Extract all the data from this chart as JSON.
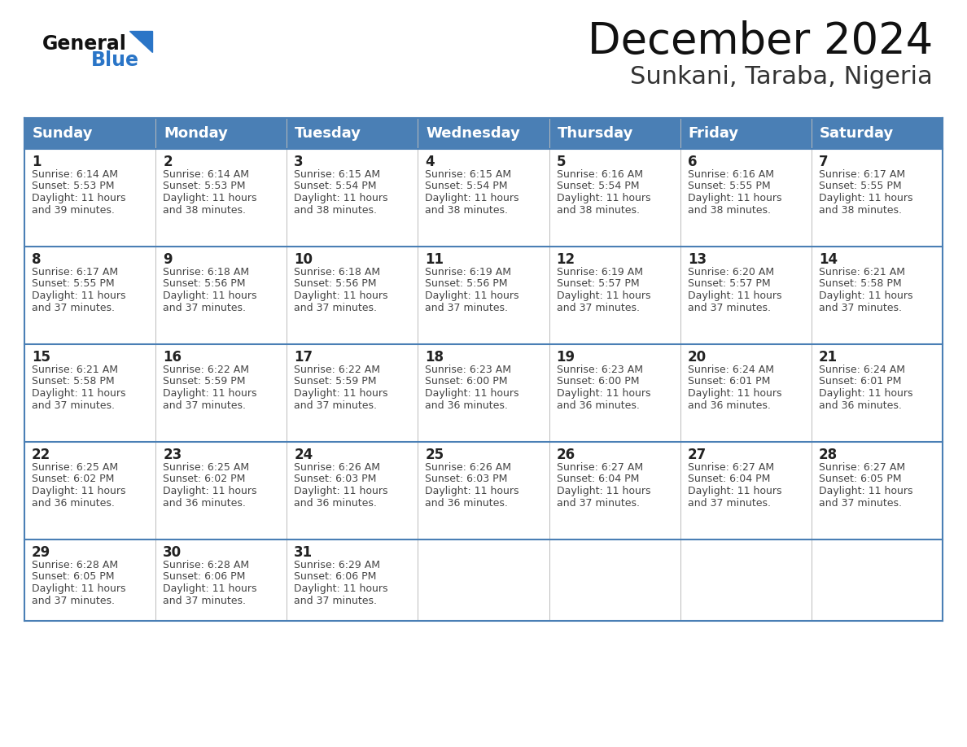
{
  "title": "December 2024",
  "subtitle": "Sunkani, Taraba, Nigeria",
  "days_of_week": [
    "Sunday",
    "Monday",
    "Tuesday",
    "Wednesday",
    "Thursday",
    "Friday",
    "Saturday"
  ],
  "header_bg": "#4a7fb5",
  "header_text": "#ffffff",
  "cell_bg": "#ffffff",
  "cell_border": "#4a7fb5",
  "row_border": "#4a7fb5",
  "day_num_color": "#222222",
  "text_color": "#444444",
  "title_color": "#111111",
  "subtitle_color": "#333333",
  "logo_general_color": "#111111",
  "logo_blue_color": "#2a75c7",
  "calendar_data": [
    [
      {
        "day": 1,
        "sunrise": "6:14 AM",
        "sunset": "5:53 PM",
        "daylight_hrs": 11,
        "daylight_min": 39
      },
      {
        "day": 2,
        "sunrise": "6:14 AM",
        "sunset": "5:53 PM",
        "daylight_hrs": 11,
        "daylight_min": 38
      },
      {
        "day": 3,
        "sunrise": "6:15 AM",
        "sunset": "5:54 PM",
        "daylight_hrs": 11,
        "daylight_min": 38
      },
      {
        "day": 4,
        "sunrise": "6:15 AM",
        "sunset": "5:54 PM",
        "daylight_hrs": 11,
        "daylight_min": 38
      },
      {
        "day": 5,
        "sunrise": "6:16 AM",
        "sunset": "5:54 PM",
        "daylight_hrs": 11,
        "daylight_min": 38
      },
      {
        "day": 6,
        "sunrise": "6:16 AM",
        "sunset": "5:55 PM",
        "daylight_hrs": 11,
        "daylight_min": 38
      },
      {
        "day": 7,
        "sunrise": "6:17 AM",
        "sunset": "5:55 PM",
        "daylight_hrs": 11,
        "daylight_min": 38
      }
    ],
    [
      {
        "day": 8,
        "sunrise": "6:17 AM",
        "sunset": "5:55 PM",
        "daylight_hrs": 11,
        "daylight_min": 37
      },
      {
        "day": 9,
        "sunrise": "6:18 AM",
        "sunset": "5:56 PM",
        "daylight_hrs": 11,
        "daylight_min": 37
      },
      {
        "day": 10,
        "sunrise": "6:18 AM",
        "sunset": "5:56 PM",
        "daylight_hrs": 11,
        "daylight_min": 37
      },
      {
        "day": 11,
        "sunrise": "6:19 AM",
        "sunset": "5:56 PM",
        "daylight_hrs": 11,
        "daylight_min": 37
      },
      {
        "day": 12,
        "sunrise": "6:19 AM",
        "sunset": "5:57 PM",
        "daylight_hrs": 11,
        "daylight_min": 37
      },
      {
        "day": 13,
        "sunrise": "6:20 AM",
        "sunset": "5:57 PM",
        "daylight_hrs": 11,
        "daylight_min": 37
      },
      {
        "day": 14,
        "sunrise": "6:21 AM",
        "sunset": "5:58 PM",
        "daylight_hrs": 11,
        "daylight_min": 37
      }
    ],
    [
      {
        "day": 15,
        "sunrise": "6:21 AM",
        "sunset": "5:58 PM",
        "daylight_hrs": 11,
        "daylight_min": 37
      },
      {
        "day": 16,
        "sunrise": "6:22 AM",
        "sunset": "5:59 PM",
        "daylight_hrs": 11,
        "daylight_min": 37
      },
      {
        "day": 17,
        "sunrise": "6:22 AM",
        "sunset": "5:59 PM",
        "daylight_hrs": 11,
        "daylight_min": 37
      },
      {
        "day": 18,
        "sunrise": "6:23 AM",
        "sunset": "6:00 PM",
        "daylight_hrs": 11,
        "daylight_min": 36
      },
      {
        "day": 19,
        "sunrise": "6:23 AM",
        "sunset": "6:00 PM",
        "daylight_hrs": 11,
        "daylight_min": 36
      },
      {
        "day": 20,
        "sunrise": "6:24 AM",
        "sunset": "6:01 PM",
        "daylight_hrs": 11,
        "daylight_min": 36
      },
      {
        "day": 21,
        "sunrise": "6:24 AM",
        "sunset": "6:01 PM",
        "daylight_hrs": 11,
        "daylight_min": 36
      }
    ],
    [
      {
        "day": 22,
        "sunrise": "6:25 AM",
        "sunset": "6:02 PM",
        "daylight_hrs": 11,
        "daylight_min": 36
      },
      {
        "day": 23,
        "sunrise": "6:25 AM",
        "sunset": "6:02 PM",
        "daylight_hrs": 11,
        "daylight_min": 36
      },
      {
        "day": 24,
        "sunrise": "6:26 AM",
        "sunset": "6:03 PM",
        "daylight_hrs": 11,
        "daylight_min": 36
      },
      {
        "day": 25,
        "sunrise": "6:26 AM",
        "sunset": "6:03 PM",
        "daylight_hrs": 11,
        "daylight_min": 36
      },
      {
        "day": 26,
        "sunrise": "6:27 AM",
        "sunset": "6:04 PM",
        "daylight_hrs": 11,
        "daylight_min": 37
      },
      {
        "day": 27,
        "sunrise": "6:27 AM",
        "sunset": "6:04 PM",
        "daylight_hrs": 11,
        "daylight_min": 37
      },
      {
        "day": 28,
        "sunrise": "6:27 AM",
        "sunset": "6:05 PM",
        "daylight_hrs": 11,
        "daylight_min": 37
      }
    ],
    [
      {
        "day": 29,
        "sunrise": "6:28 AM",
        "sunset": "6:05 PM",
        "daylight_hrs": 11,
        "daylight_min": 37
      },
      {
        "day": 30,
        "sunrise": "6:28 AM",
        "sunset": "6:06 PM",
        "daylight_hrs": 11,
        "daylight_min": 37
      },
      {
        "day": 31,
        "sunrise": "6:29 AM",
        "sunset": "6:06 PM",
        "daylight_hrs": 11,
        "daylight_min": 37
      },
      null,
      null,
      null,
      null
    ]
  ]
}
